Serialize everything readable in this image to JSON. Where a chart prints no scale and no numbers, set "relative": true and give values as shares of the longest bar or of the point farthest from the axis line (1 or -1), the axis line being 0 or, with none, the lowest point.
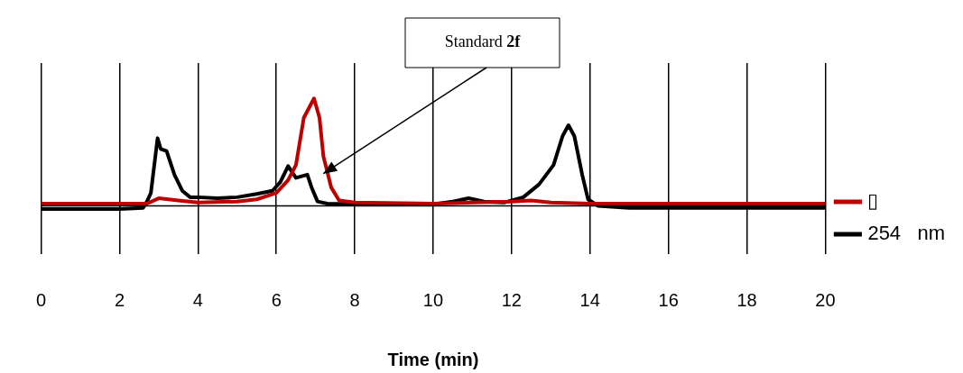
{
  "chart_data": {
    "type": "line",
    "relative": true,
    "xlabel": "Time (min)",
    "xlim": [
      0,
      20
    ],
    "xticks": [
      0,
      2,
      4,
      6,
      8,
      10,
      12,
      14,
      16,
      18,
      20
    ],
    "grid": "x",
    "legend": "right",
    "marker": "none",
    "line_style": "solid",
    "annotations": [
      {
        "text": "Standard 2f",
        "x": 7.2,
        "y": 0.3
      }
    ],
    "series": [
      {
        "name": "▯",
        "color": "#c00000",
        "x": [
          0,
          2.7,
          3.0,
          3.5,
          4.0,
          5.0,
          5.5,
          6.0,
          6.3,
          6.5,
          6.7,
          6.96,
          7.1,
          7.2,
          7.4,
          7.6,
          8,
          10,
          11,
          12,
          12.5,
          13,
          14,
          20
        ],
        "values": [
          0.02,
          0.02,
          0.07,
          0.05,
          0.03,
          0.04,
          0.06,
          0.12,
          0.24,
          0.38,
          0.82,
          1.0,
          0.82,
          0.46,
          0.17,
          0.05,
          0.03,
          0.02,
          0.03,
          0.04,
          0.05,
          0.03,
          0.02,
          0.02
        ]
      },
      {
        "name": "254   nm",
        "color": "#000000",
        "x": [
          0,
          2.0,
          2.6,
          2.7,
          2.8,
          2.97,
          3.05,
          3.2,
          3.4,
          3.6,
          3.8,
          4.0,
          4.5,
          5.0,
          5.5,
          5.9,
          6.1,
          6.3,
          6.5,
          6.79,
          6.9,
          7.05,
          7.3,
          8,
          9,
          10,
          10.5,
          10.9,
          11.3,
          11.8,
          12.3,
          12.7,
          13.07,
          13.3,
          13.45,
          13.6,
          13.8,
          13.95,
          14.2,
          15,
          20
        ],
        "values": [
          -0.03,
          -0.03,
          -0.02,
          0.04,
          0.12,
          0.63,
          0.53,
          0.51,
          0.29,
          0.14,
          0.08,
          0.08,
          0.07,
          0.08,
          0.11,
          0.14,
          0.22,
          0.37,
          0.26,
          0.29,
          0.17,
          0.04,
          0.02,
          0.015,
          0.02,
          0.015,
          0.04,
          0.07,
          0.04,
          0.03,
          0.08,
          0.2,
          0.38,
          0.65,
          0.75,
          0.65,
          0.29,
          0.06,
          0,
          -0.02,
          -0.02
        ]
      }
    ]
  }
}
